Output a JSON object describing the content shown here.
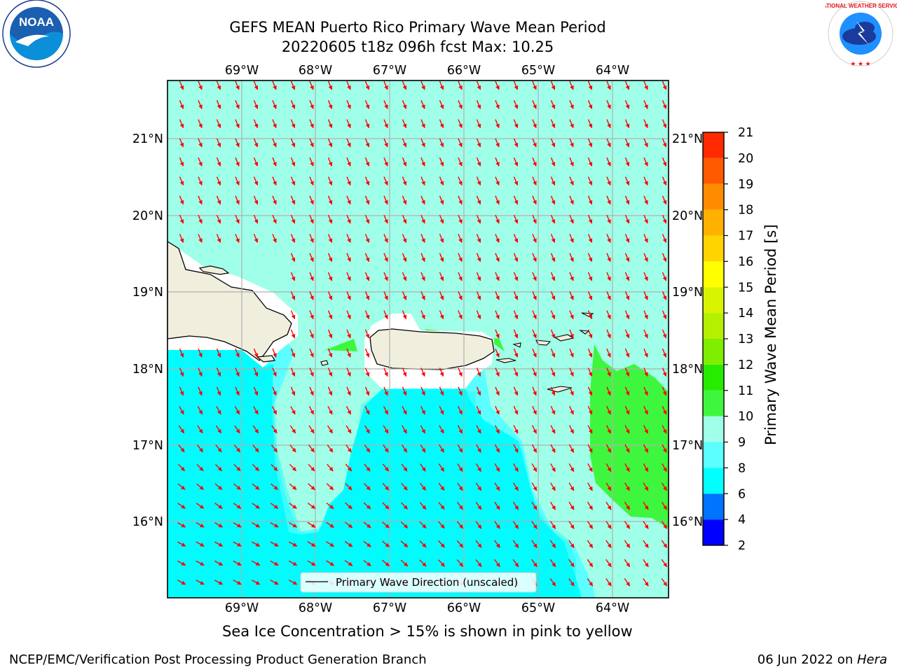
{
  "title": {
    "line1": "GEFS MEAN Puerto Rico Primary Wave Mean Period",
    "line2": "20220605 t18z 096h fcst   Max: 10.25"
  },
  "map": {
    "lon_ticks": [
      "69°W",
      "68°W",
      "67°W",
      "66°W",
      "65°W",
      "64°W"
    ],
    "lat_ticks": [
      "21°N",
      "20°N",
      "19°N",
      "18°N",
      "17°N",
      "16°N"
    ],
    "legend_label": "Primary Wave Direction (unscaled)",
    "arrow_color": "#ff0000",
    "land_color": "#f0eedd"
  },
  "colorbar": {
    "label": "Primary Wave Mean Period [s]",
    "ticks": [
      "2",
      "4",
      "6",
      "8",
      "9",
      "10",
      "11",
      "12",
      "13",
      "14",
      "15",
      "16",
      "17",
      "18",
      "19",
      "20",
      "21"
    ],
    "colors": [
      "#0000ff",
      "#0073ff",
      "#00ffff",
      "#5cffff",
      "#9fffe8",
      "#3ff63f",
      "#26ec00",
      "#80ee00",
      "#b5f000",
      "#d8f400",
      "#ffff00",
      "#ffd400",
      "#ffb100",
      "#ff8c00",
      "#ff5a00",
      "#ff2a00"
    ]
  },
  "notes": {
    "sea_ice": "Sea Ice Concentration > 15% is shown in pink to yellow"
  },
  "footer": {
    "left": "NCEP/EMC/Verification Post Processing Product Generation Branch",
    "right_date": "06 Jun 2022 on ",
    "right_host": "Hera"
  },
  "logos": {
    "noaa_text": "NOAA",
    "nws_text": "NATIONAL WEATHER SERVICE"
  }
}
